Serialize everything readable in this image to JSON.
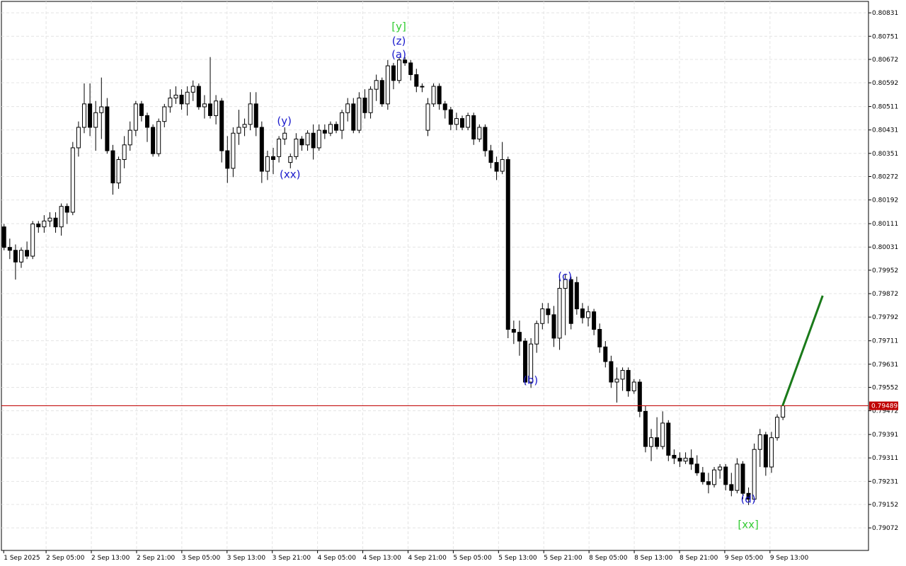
{
  "chart_data": {
    "type": "candlestick",
    "ylim": [
      0.78995,
      0.8087
    ],
    "yticks": [
      0.80831,
      0.80751,
      0.80672,
      0.80592,
      0.80511,
      0.80431,
      0.80351,
      0.80272,
      0.80192,
      0.80111,
      0.80031,
      0.79952,
      0.79872,
      0.79792,
      0.79711,
      0.79631,
      0.79552,
      0.79472,
      0.79391,
      0.79311,
      0.79231,
      0.79152,
      0.79072
    ],
    "xlim": [
      -0.4,
      151
    ],
    "xticks": [
      {
        "value": 0,
        "label": "1 Sep 2025"
      },
      {
        "value": 7.4,
        "label": "2 Sep 05:00"
      },
      {
        "value": 15.3,
        "label": "2 Sep 13:00"
      },
      {
        "value": 23.2,
        "label": "2 Sep 21:00"
      },
      {
        "value": 31.1,
        "label": "3 Sep 05:00"
      },
      {
        "value": 39,
        "label": "3 Sep 13:00"
      },
      {
        "value": 46.9,
        "label": "3 Sep 21:00"
      },
      {
        "value": 54.8,
        "label": "4 Sep 05:00"
      },
      {
        "value": 62.7,
        "label": "4 Sep 13:00"
      },
      {
        "value": 70.6,
        "label": "4 Sep 21:00"
      },
      {
        "value": 78.5,
        "label": "5 Sep 05:00"
      },
      {
        "value": 86.4,
        "label": "5 Sep 13:00"
      },
      {
        "value": 94.3,
        "label": "5 Sep 21:00"
      },
      {
        "value": 102.2,
        "label": "8 Sep 05:00"
      },
      {
        "value": 110.1,
        "label": "8 Sep 13:00"
      },
      {
        "value": 118,
        "label": "8 Sep 21:00"
      },
      {
        "value": 125.9,
        "label": "9 Sep 05:00"
      },
      {
        "value": 133.8,
        "label": "9 Sep 13:00"
      }
    ],
    "grid": true,
    "up_color": "#ffffff",
    "down_color": "#000000",
    "candles": [
      [
        0.801,
        0.8011,
        0.8002,
        0.8003
      ],
      [
        0.8003,
        0.8006,
        0.7999,
        0.8002
      ],
      [
        0.8002,
        0.8004,
        0.7992,
        0.7998
      ],
      [
        0.7998,
        0.8003,
        0.7996,
        0.8002
      ],
      [
        0.8002,
        0.8005,
        0.7999,
        0.8
      ],
      [
        0.8,
        0.8012,
        0.7999,
        0.8011
      ],
      [
        0.8011,
        0.8012,
        0.8008,
        0.801
      ],
      [
        0.801,
        0.8014,
        0.8008,
        0.8012
      ],
      [
        0.8012,
        0.8015,
        0.801,
        0.8013
      ],
      [
        0.8013,
        0.8015,
        0.8008,
        0.801
      ],
      [
        0.801,
        0.8018,
        0.8007,
        0.8017
      ],
      [
        0.8017,
        0.8018,
        0.8011,
        0.8015
      ],
      [
        0.8015,
        0.8039,
        0.8014,
        0.8037
      ],
      [
        0.8037,
        0.8046,
        0.8034,
        0.8044
      ],
      [
        0.8044,
        0.8059,
        0.8042,
        0.8052
      ],
      [
        0.8052,
        0.8059,
        0.8041,
        0.8044
      ],
      [
        0.8044,
        0.8053,
        0.8036,
        0.8049
      ],
      [
        0.8049,
        0.8061,
        0.804,
        0.8051
      ],
      [
        0.8051,
        0.8054,
        0.8035,
        0.8036
      ],
      [
        0.8036,
        0.8038,
        0.8021,
        0.8025
      ],
      [
        0.8025,
        0.8034,
        0.8023,
        0.8033
      ],
      [
        0.8033,
        0.8041,
        0.803,
        0.8038
      ],
      [
        0.8038,
        0.8046,
        0.8036,
        0.8043
      ],
      [
        0.8043,
        0.8053,
        0.8041,
        0.8052
      ],
      [
        0.8052,
        0.8053,
        0.8046,
        0.8048
      ],
      [
        0.8048,
        0.8049,
        0.8039,
        0.8044
      ],
      [
        0.8044,
        0.8045,
        0.8034,
        0.8035
      ],
      [
        0.8035,
        0.8047,
        0.8034,
        0.8046
      ],
      [
        0.8046,
        0.8052,
        0.8044,
        0.8051
      ],
      [
        0.8051,
        0.8057,
        0.8049,
        0.8054
      ],
      [
        0.8054,
        0.8058,
        0.8052,
        0.8055
      ],
      [
        0.8055,
        0.8057,
        0.805,
        0.8052
      ],
      [
        0.8052,
        0.8058,
        0.8048,
        0.8056
      ],
      [
        0.8056,
        0.806,
        0.8053,
        0.8058
      ],
      [
        0.8058,
        0.8059,
        0.805,
        0.8051
      ],
      [
        0.8051,
        0.8055,
        0.8047,
        0.8052
      ],
      [
        0.8052,
        0.8068,
        0.8047,
        0.8048
      ],
      [
        0.8048,
        0.8055,
        0.8045,
        0.8053
      ],
      [
        0.8053,
        0.8054,
        0.8032,
        0.8036
      ],
      [
        0.8036,
        0.8041,
        0.8025,
        0.803
      ],
      [
        0.803,
        0.8044,
        0.8027,
        0.8042
      ],
      [
        0.8042,
        0.805,
        0.8038,
        0.8044
      ],
      [
        0.8044,
        0.8047,
        0.8041,
        0.8045
      ],
      [
        0.8045,
        0.8056,
        0.8043,
        0.8052
      ],
      [
        0.8052,
        0.8056,
        0.8041,
        0.8044
      ],
      [
        0.8044,
        0.8046,
        0.8025,
        0.8029
      ],
      [
        0.8029,
        0.8036,
        0.8026,
        0.8034
      ],
      [
        0.8034,
        0.8037,
        0.8028,
        0.8033
      ],
      [
        0.8034,
        0.8041,
        0.8032,
        0.804
      ],
      [
        0.804,
        0.8044,
        0.8038,
        0.8042
      ],
      [
        0.8032,
        0.8035,
        0.803,
        0.8034
      ],
      [
        0.8034,
        0.8042,
        0.8033,
        0.804
      ],
      [
        0.804,
        0.8041,
        0.8036,
        0.8038
      ],
      [
        0.8038,
        0.8043,
        0.8036,
        0.8042
      ],
      [
        0.8042,
        0.8045,
        0.8033,
        0.8037
      ],
      [
        0.8037,
        0.8045,
        0.8036,
        0.8043
      ],
      [
        0.8043,
        0.8045,
        0.804,
        0.8042
      ],
      [
        0.8042,
        0.8046,
        0.8041,
        0.8045
      ],
      [
        0.8045,
        0.8046,
        0.8042,
        0.8043
      ],
      [
        0.8043,
        0.805,
        0.804,
        0.8049
      ],
      [
        0.8049,
        0.8054,
        0.8046,
        0.8052
      ],
      [
        0.8052,
        0.8054,
        0.8042,
        0.8043
      ],
      [
        0.8043,
        0.8056,
        0.8042,
        0.8054
      ],
      [
        0.8054,
        0.8057,
        0.8047,
        0.8049
      ],
      [
        0.8049,
        0.8058,
        0.8047,
        0.8057
      ],
      [
        0.8057,
        0.8062,
        0.8053,
        0.806
      ],
      [
        0.806,
        0.8061,
        0.8051,
        0.8052
      ],
      [
        0.8052,
        0.8067,
        0.805,
        0.8065
      ],
      [
        0.8065,
        0.8066,
        0.8057,
        0.806
      ],
      [
        0.806,
        0.8068,
        0.8059,
        0.8067
      ],
      [
        0.8067,
        0.8068,
        0.8065,
        0.8066
      ],
      [
        0.8066,
        0.8067,
        0.806,
        0.8062
      ],
      [
        0.8062,
        0.8064,
        0.8056,
        0.8058
      ],
      [
        0.8058,
        0.8059,
        0.8056,
        0.8058
      ],
      [
        0.8043,
        0.8054,
        0.8041,
        0.8052
      ],
      [
        0.8052,
        0.8059,
        0.8051,
        0.8058
      ],
      [
        0.8058,
        0.8059,
        0.805,
        0.8052
      ],
      [
        0.8052,
        0.8053,
        0.8047,
        0.805
      ],
      [
        0.805,
        0.8051,
        0.8043,
        0.8045
      ],
      [
        0.8045,
        0.8049,
        0.8043,
        0.8047
      ],
      [
        0.8047,
        0.8048,
        0.8043,
        0.8044
      ],
      [
        0.8044,
        0.8049,
        0.8043,
        0.8048
      ],
      [
        0.8048,
        0.8049,
        0.8038,
        0.804
      ],
      [
        0.804,
        0.8045,
        0.8039,
        0.8044
      ],
      [
        0.8044,
        0.8045,
        0.8034,
        0.8036
      ],
      [
        0.8036,
        0.8038,
        0.803,
        0.8032
      ],
      [
        0.8032,
        0.8034,
        0.8026,
        0.8029
      ],
      [
        0.8029,
        0.8039,
        0.8028,
        0.8033
      ],
      [
        0.8033,
        0.8034,
        0.7972,
        0.7975
      ],
      [
        0.7975,
        0.7978,
        0.797,
        0.7974
      ],
      [
        0.7974,
        0.7978,
        0.7966,
        0.7971
      ],
      [
        0.7971,
        0.7972,
        0.7956,
        0.7957
      ],
      [
        0.7957,
        0.7972,
        0.7955,
        0.797
      ],
      [
        0.797,
        0.7978,
        0.7967,
        0.7977
      ],
      [
        0.7977,
        0.7984,
        0.7975,
        0.7982
      ],
      [
        0.7982,
        0.7984,
        0.7977,
        0.798
      ],
      [
        0.798,
        0.7983,
        0.7969,
        0.7972
      ],
      [
        0.7972,
        0.7994,
        0.7968,
        0.7989
      ],
      [
        0.7989,
        0.7994,
        0.7973,
        0.7992
      ],
      [
        0.7992,
        0.7993,
        0.7975,
        0.7977
      ],
      [
        0.7991,
        0.7993,
        0.798,
        0.7982
      ],
      [
        0.7982,
        0.7984,
        0.7977,
        0.7979
      ],
      [
        0.7979,
        0.7983,
        0.7976,
        0.7981
      ],
      [
        0.7981,
        0.7982,
        0.7973,
        0.7975
      ],
      [
        0.7975,
        0.7977,
        0.7967,
        0.7969
      ],
      [
        0.7969,
        0.7971,
        0.7962,
        0.7964
      ],
      [
        0.7964,
        0.7966,
        0.7955,
        0.7957
      ],
      [
        0.7957,
        0.7962,
        0.795,
        0.7958
      ],
      [
        0.7958,
        0.7962,
        0.7954,
        0.7961
      ],
      [
        0.7961,
        0.7962,
        0.7952,
        0.7954
      ],
      [
        0.7954,
        0.7958,
        0.7953,
        0.7957
      ],
      [
        0.7957,
        0.7958,
        0.7945,
        0.7947
      ],
      [
        0.7947,
        0.7949,
        0.7933,
        0.7935
      ],
      [
        0.7935,
        0.7941,
        0.793,
        0.7938
      ],
      [
        0.7938,
        0.7945,
        0.7934,
        0.7935
      ],
      [
        0.7935,
        0.7947,
        0.7934,
        0.7943
      ],
      [
        0.7943,
        0.7944,
        0.793,
        0.7932
      ],
      [
        0.7932,
        0.7934,
        0.7929,
        0.7931
      ],
      [
        0.7931,
        0.7933,
        0.7928,
        0.793
      ],
      [
        0.793,
        0.7933,
        0.7929,
        0.7931
      ],
      [
        0.7931,
        0.7934,
        0.7927,
        0.7929
      ],
      [
        0.7929,
        0.7932,
        0.7925,
        0.7926
      ],
      [
        0.7926,
        0.7928,
        0.7922,
        0.7923
      ],
      [
        0.7923,
        0.7926,
        0.7919,
        0.7922
      ],
      [
        0.7922,
        0.7928,
        0.7921,
        0.7927
      ],
      [
        0.7927,
        0.7929,
        0.7924,
        0.7928
      ],
      [
        0.7928,
        0.7929,
        0.792,
        0.7922
      ],
      [
        0.7922,
        0.7926,
        0.7918,
        0.792
      ],
      [
        0.792,
        0.7931,
        0.7919,
        0.7929
      ],
      [
        0.7929,
        0.793,
        0.7917,
        0.7919
      ],
      [
        0.7919,
        0.7921,
        0.7915,
        0.7917
      ],
      [
        0.7917,
        0.7936,
        0.7916,
        0.7934
      ],
      [
        0.7934,
        0.7941,
        0.7928,
        0.7939
      ],
      [
        0.7939,
        0.794,
        0.7925,
        0.7928
      ],
      [
        0.7928,
        0.794,
        0.7926,
        0.7938
      ],
      [
        0.7938,
        0.7946,
        0.7937,
        0.7945
      ],
      [
        0.7945,
        0.79495,
        0.7944,
        0.79489
      ]
    ],
    "current_price": {
      "value": 0.79489,
      "label": "0.79489",
      "color": "#c00000"
    },
    "projection": {
      "x": [
        136,
        143
      ],
      "y": [
        0.79489,
        0.79865
      ],
      "color": "#1a7a1a"
    },
    "annotations": [
      {
        "text": "[y]",
        "x": 69,
        "y": 0.80783,
        "color": "#33cc33"
      },
      {
        "text": "(z)",
        "x": 69,
        "y": 0.80734,
        "color": "#1a1acc"
      },
      {
        "text": "(a)",
        "x": 69,
        "y": 0.80688,
        "color": "#1a1acc"
      },
      {
        "text": "(y)",
        "x": 49,
        "y": 0.80461,
        "color": "#1a1acc"
      },
      {
        "text": "(xx)",
        "x": 50,
        "y": 0.80278,
        "color": "#1a1acc"
      },
      {
        "text": "(b)",
        "x": 92,
        "y": 0.79575,
        "color": "#1a1acc"
      },
      {
        "text": "(c)",
        "x": 98,
        "y": 0.7993,
        "color": "#1a1acc"
      },
      {
        "text": "(d)",
        "x": 130,
        "y": 0.79169,
        "color": "#1a1acc"
      },
      {
        "text": "[xx]",
        "x": 130,
        "y": 0.79082,
        "color": "#33cc33"
      }
    ]
  }
}
